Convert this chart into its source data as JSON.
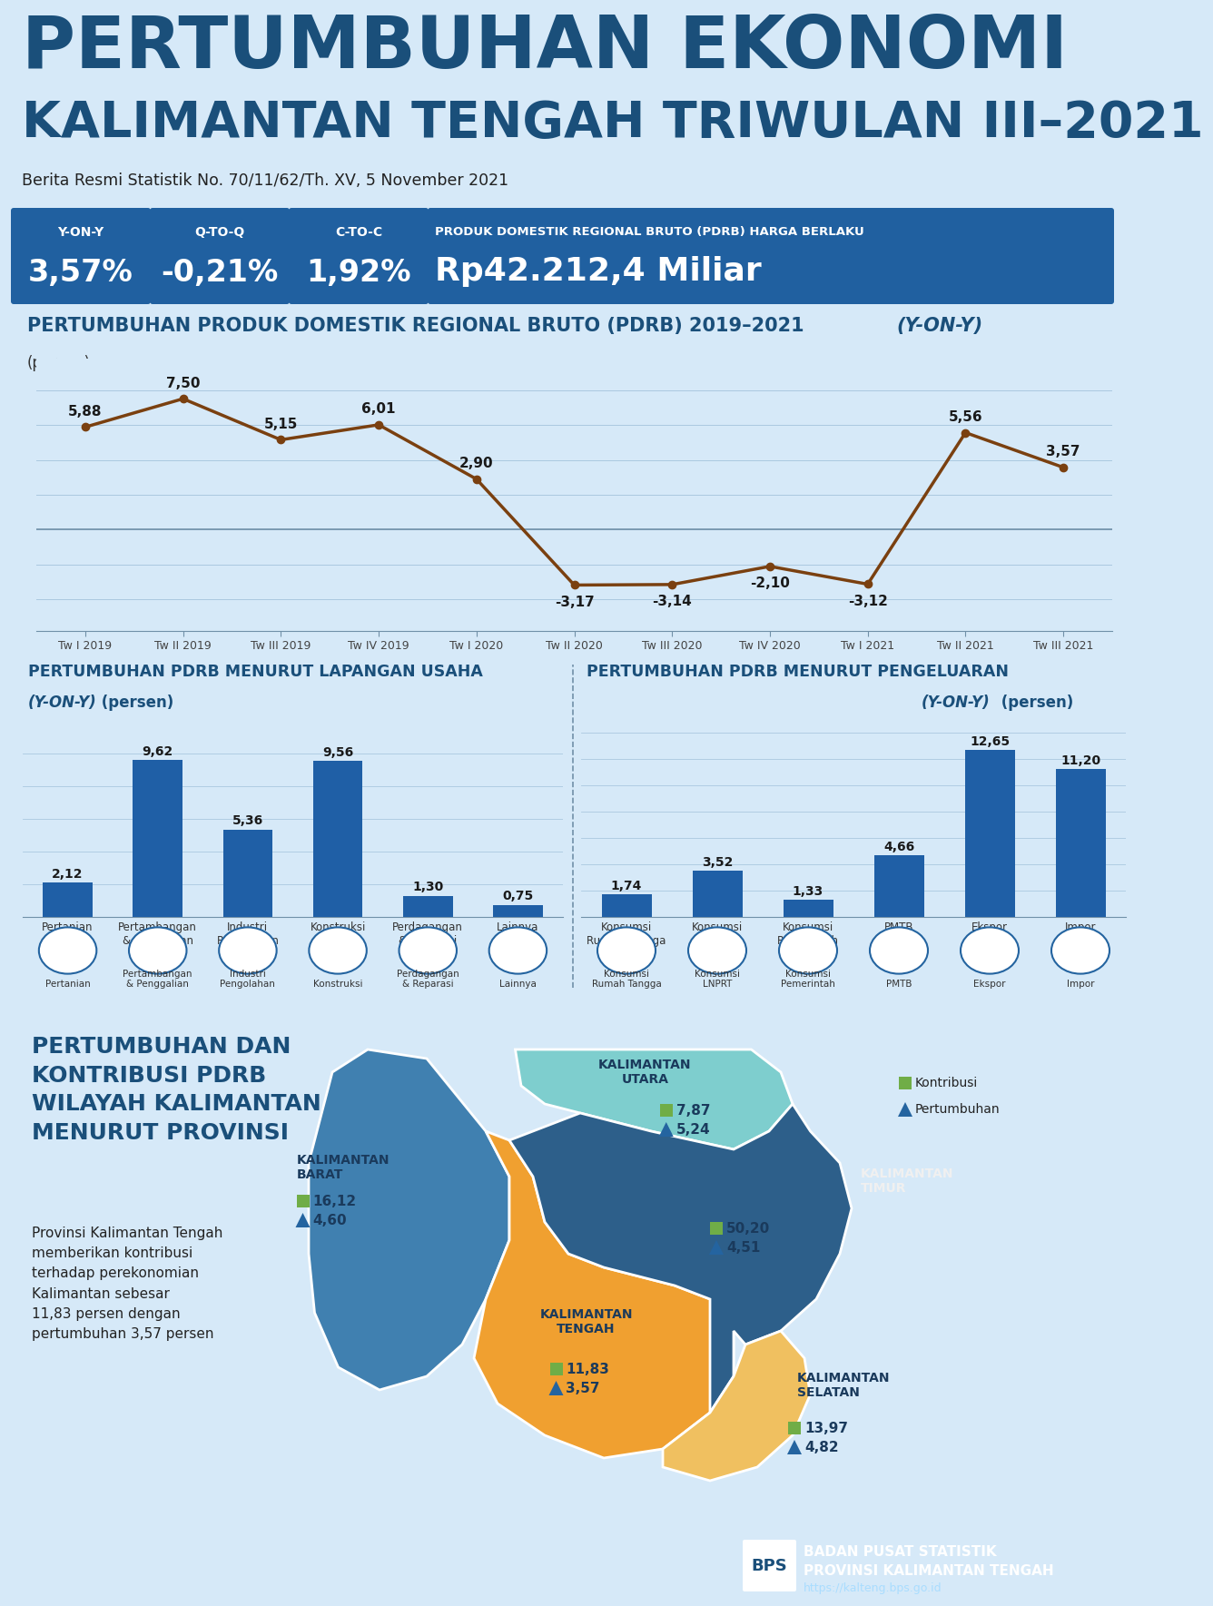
{
  "title_line1": "PERTUMBUHAN EKONOMI",
  "title_line2": "KALIMANTAN TENGAH TRIWULAN III–2021",
  "subtitle": "Berita Resmi Statistik No. 70/11/62/Th. XV, 5 November 2021",
  "kpi": [
    {
      "label": "Y-ON-Y",
      "value": "3,57%"
    },
    {
      "label": "Q-TO-Q",
      "value": "-0,21%"
    },
    {
      "label": "C-TO-C",
      "value": "1,92%"
    }
  ],
  "pdrb_label": "PRODUK DOMESTIK REGIONAL BRUTO (PDRB) HARGA BERLAKU",
  "pdrb_value": "Rp42.212,4 Miliar",
  "line_chart_title_main": "PERTUMBUHAN PRODUK DOMESTIK REGIONAL BRUTO (PDRB) 2019–2021 ",
  "line_chart_title_italic": "(Y-ON-Y)",
  "line_chart_subtitle": "(persen)",
  "line_x_labels": [
    "Tw I 2019",
    "Tw II 2019",
    "Tw III 2019",
    "Tw IV 2019",
    "Tw I 2020",
    "Tw II 2020",
    "Tw III 2020",
    "Tw IV 2020",
    "Tw I 2021",
    "Tw II 2021",
    "Tw III 2021"
  ],
  "line_y_values": [
    5.88,
    7.5,
    5.15,
    6.01,
    2.9,
    -3.17,
    -3.14,
    -2.1,
    -3.12,
    5.56,
    3.57
  ],
  "line_y_labels": [
    "5,88",
    "7,50",
    "5,15",
    "6,01",
    "2,90",
    "-3,17",
    "-3,14",
    "-2,10",
    "-3,12",
    "5,56",
    "3,57"
  ],
  "bar1_title": "PERTUMBUHAN PDRB MENURUT LAPANGAN USAHA",
  "bar1_subtitle_italic": "(Y-ON-Y)",
  "bar1_subtitle_normal": " (persen)",
  "bar1_categories": [
    "Pertanian",
    "Pertambangan\n& Penggalian",
    "Industri\nPengolahan",
    "Konstruksi",
    "Perdagangan\n& Reparasi",
    "Lainnya"
  ],
  "bar1_values": [
    2.12,
    9.62,
    5.36,
    9.56,
    1.3,
    0.75
  ],
  "bar1_labels": [
    "2,12",
    "9,62",
    "5,36",
    "9,56",
    "1,30",
    "0,75"
  ],
  "bar2_title": "PERTUMBUHAN PDRB MENURUT PENGELUARAN",
  "bar2_subtitle_italic": "(Y-ON-Y)",
  "bar2_subtitle_normal": " (persen)",
  "bar2_categories": [
    "Konsumsi\nRumah Tangga",
    "Konsumsi\nLNPRT",
    "Konsumsi\nPemerintah",
    "PMTB",
    "Ekspor",
    "Impor"
  ],
  "bar2_values": [
    1.74,
    3.52,
    1.33,
    4.66,
    12.65,
    11.2
  ],
  "bar2_labels": [
    "1,74",
    "3,52",
    "1,33",
    "4,66",
    "12,65",
    "11,20"
  ],
  "map_title": "PERTUMBUHAN DAN\nKONTRIBUSI PDRB\nWILAYAH KALIMANTAN\nMENURUT PROVINSI",
  "map_desc": "Provinsi Kalimantan Tengah\nmemberikan kontribusi\nterhadap perekonomian\nKalimantan sebesar\n11,83 persen dengan\npertumbuhan 3,57 persen",
  "prov_kaltara": {
    "name": "KALIMANTAN\nUTARA",
    "k": "7,87",
    "p": "5,24"
  },
  "prov_kalbar": {
    "name": "KALIMANTAN\nBARAT",
    "k": "16,12",
    "p": "4,60"
  },
  "prov_kalteng": {
    "name": "KALIMANTAN\nTENGAH",
    "k": "11,83",
    "p": "3,57"
  },
  "prov_kaltim": {
    "name": "KALIMANTAN\nTIMUR",
    "k": "50,20",
    "p": "4,51"
  },
  "prov_kalsel": {
    "name": "KALIMANTAN\nSELATAN",
    "k": "13,97",
    "p": "4,82"
  },
  "legend_kontribusi": "Kontribusi",
  "legend_pertumbuhan": "Pertumbuhan",
  "bg_color": "#d6e9f8",
  "dark_blue": "#1a4f7a",
  "mid_blue": "#2464a0",
  "kpi_blue": "#2060a0",
  "bar_color": "#1f5fa6",
  "line_color": "#7a4010",
  "divider_color": "#1a4f7a",
  "footer_bg": "#1a3a5c",
  "footer_text1": "BADAN PUSAT STATISTIK",
  "footer_text2": "PROVINSI KALIMANTAN TENGAH",
  "footer_text3": "https://kalteng.bps.go.id",
  "green_color": "#70ad47",
  "teal_color": "#4da6a0",
  "orange_color": "#f0a040",
  "kaltara_color": "#7ecece",
  "kalbar_color": "#4080b0",
  "kalteng_color": "#f0a030",
  "kaltim_color": "#2d5f8a",
  "kalsel_color": "#f0c060"
}
